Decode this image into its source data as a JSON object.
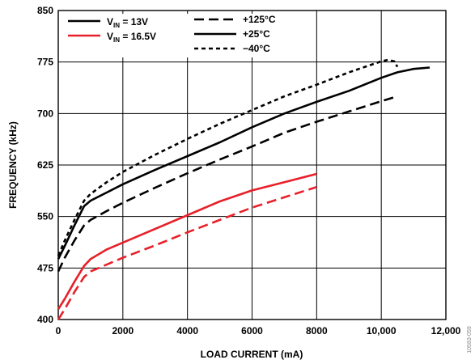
{
  "chart_data": {
    "type": "line",
    "title": "",
    "xlabel": "LOAD CURRENT (mA)",
    "ylabel": "FREQUENCY (kHz)",
    "xlim": [
      0,
      12000
    ],
    "ylim": [
      400,
      850
    ],
    "x_ticks": [
      0,
      2000,
      4000,
      6000,
      8000,
      10000,
      12000
    ],
    "x_tick_labels": [
      "0",
      "2000",
      "4000",
      "6000",
      "8000",
      "10,000",
      "12,000"
    ],
    "y_ticks": [
      400,
      475,
      550,
      625,
      700,
      775,
      850
    ],
    "y_tick_labels": [
      "400",
      "475",
      "550",
      "625",
      "700",
      "775",
      "850"
    ],
    "grid": true,
    "legend": {
      "placement": "top-left",
      "colors": [
        {
          "label_main": "V",
          "label_sub": "IN",
          "label_rest": " = 13V",
          "color": "#000000"
        },
        {
          "label_main": "V",
          "label_sub": "IN",
          "label_rest": " = 16.5V",
          "color": "#e8202a"
        }
      ],
      "styles": [
        {
          "label": "+125°C",
          "dash": "dashed"
        },
        {
          "label": "+25°C",
          "dash": "solid"
        },
        {
          "label": "−40°C",
          "dash": "short-dash"
        }
      ]
    },
    "series": [
      {
        "color": "#000000",
        "dash": "short-dash",
        "x": [
          0,
          200,
          500,
          800,
          1000,
          1500,
          2000,
          3000,
          4000,
          5000,
          6000,
          7000,
          8000,
          9000,
          9500,
          10000,
          10200,
          10400,
          10500
        ],
        "y": [
          493,
          515,
          545,
          573,
          583,
          600,
          615,
          640,
          663,
          685,
          705,
          725,
          742,
          760,
          768,
          776,
          778,
          776,
          768
        ]
      },
      {
        "color": "#000000",
        "dash": "solid",
        "x": [
          0,
          200,
          500,
          800,
          1000,
          1500,
          2000,
          3000,
          4000,
          5000,
          6000,
          7000,
          8000,
          9000,
          10000,
          10500,
          11000,
          11500
        ],
        "y": [
          488,
          507,
          537,
          565,
          573,
          585,
          597,
          618,
          638,
          658,
          680,
          700,
          717,
          733,
          752,
          760,
          765,
          767
        ]
      },
      {
        "color": "#000000",
        "dash": "dashed",
        "x": [
          0,
          200,
          500,
          800,
          1000,
          1500,
          2000,
          3000,
          4000,
          5000,
          6000,
          7000,
          8000,
          9000,
          10000,
          10500
        ],
        "y": [
          470,
          490,
          515,
          537,
          545,
          558,
          570,
          592,
          613,
          633,
          652,
          672,
          688,
          703,
          718,
          725
        ]
      },
      {
        "color": "#e8202a",
        "dash": "solid",
        "x": [
          0,
          200,
          500,
          800,
          1000,
          1500,
          2000,
          3000,
          4000,
          5000,
          6000,
          7000,
          8000
        ],
        "y": [
          415,
          430,
          455,
          478,
          488,
          502,
          512,
          532,
          552,
          572,
          588,
          600,
          612
        ]
      },
      {
        "color": "#e8202a",
        "dash": "dashed",
        "x": [
          0,
          200,
          500,
          800,
          1000,
          1500,
          2000,
          3000,
          4000,
          5000,
          6000,
          7000,
          8000
        ],
        "y": [
          400,
          415,
          440,
          462,
          470,
          480,
          490,
          508,
          527,
          545,
          563,
          578,
          593
        ]
      }
    ]
  },
  "side_code": "10583-059"
}
